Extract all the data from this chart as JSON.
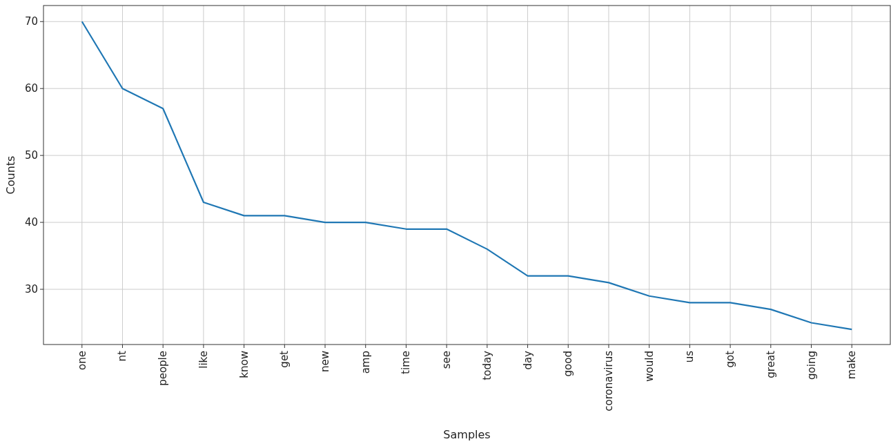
{
  "chart_data": {
    "type": "line",
    "xlabel": "Samples",
    "ylabel": "Counts",
    "categories": [
      "one",
      "nt",
      "people",
      "like",
      "know",
      "get",
      "new",
      "amp",
      "time",
      "see",
      "today",
      "day",
      "good",
      "coronavirus",
      "would",
      "us",
      "got",
      "great",
      "going",
      "make"
    ],
    "series": [
      {
        "color": "#1f77b4",
        "values": [
          70,
          60,
          57,
          43,
          41,
          41,
          40,
          40,
          39,
          39,
          36,
          32,
          32,
          31,
          29,
          28,
          28,
          27,
          25,
          24
        ]
      }
    ],
    "ylim": [
      21.75,
      72.4
    ],
    "yticks": [
      30,
      40,
      50,
      60,
      70
    ],
    "grid": true
  }
}
